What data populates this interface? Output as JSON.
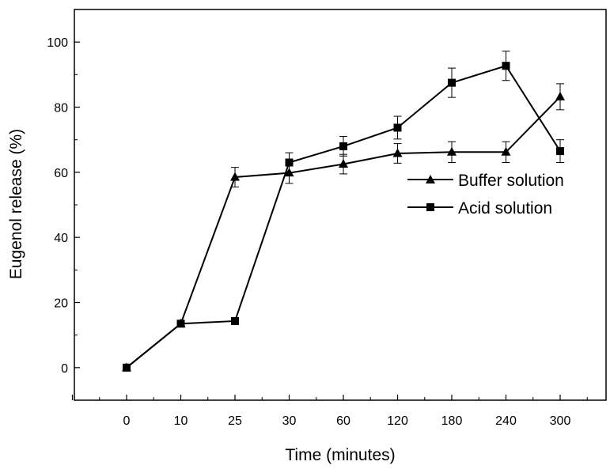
{
  "chart_data": {
    "type": "line",
    "title": "",
    "xlabel": "Time (minutes)",
    "ylabel": "Eugenol release (%)",
    "categories": [
      "0",
      "10",
      "25",
      "30",
      "60",
      "120",
      "180",
      "240",
      "300"
    ],
    "ylim": [
      -10,
      110
    ],
    "yticks": [
      0,
      20,
      40,
      60,
      80,
      100
    ],
    "grid": false,
    "legend_position": "center-right",
    "series": [
      {
        "name": "Buffer solution",
        "marker": "triangle",
        "values": [
          0,
          13.5,
          58.5,
          59.8,
          62.5,
          65.8,
          66.2,
          66.2,
          83.2
        ],
        "errors": [
          0,
          0,
          3,
          3.2,
          3,
          3,
          3.2,
          3.2,
          4
        ]
      },
      {
        "name": "Acid solution",
        "marker": "square",
        "values": [
          0,
          13.5,
          14.3,
          63,
          68,
          73.7,
          87.5,
          92.7,
          66.5
        ],
        "errors": [
          0,
          0,
          0,
          3,
          3,
          3.5,
          4.5,
          4.5,
          3.5
        ]
      }
    ]
  }
}
